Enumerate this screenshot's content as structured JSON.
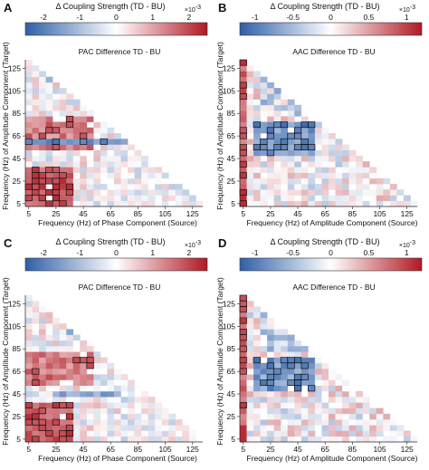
{
  "colormap": {
    "neg": "#2f5fa8",
    "zero": "#ffffff",
    "pos": "#b01924"
  },
  "chart_data": [
    {
      "letter": "A",
      "type": "heatmap",
      "mode": "pac",
      "title": "PAC Difference TD - BU",
      "colorbar_label": "Δ Coupling Strength (TD - BU)",
      "colorbar_exp": "×10",
      "colorbar_exp_power": "-3",
      "colorbar_ticks": [
        "-2",
        "-1",
        "0",
        "1",
        "2"
      ],
      "colorbar_range": [
        -2.5,
        2.5
      ],
      "xlabel": "Frequency (Hz) of Phase Component (Source)",
      "ylabel": "Frequency (Hz) of Amplitude Component (Target)",
      "xticks": [
        "5",
        "25",
        "45",
        "65",
        "85",
        "105",
        "125"
      ],
      "yticks": [
        "5",
        "25",
        "45",
        "65",
        "85",
        "105",
        "125"
      ],
      "freq_range": [
        5,
        135
      ],
      "bin_width": 5,
      "seed": 11
    },
    {
      "letter": "B",
      "type": "heatmap",
      "mode": "aac",
      "title": "AAC Difference TD - BU",
      "colorbar_label": "Δ Coupling Strength (TD - BU)",
      "colorbar_exp": "×10",
      "colorbar_exp_power": "-3",
      "colorbar_ticks": [
        "-1",
        "-0.5",
        "0",
        "0.5",
        "1"
      ],
      "colorbar_range": [
        -1.2,
        1.2
      ],
      "xlabel": "Frequency (Hz) of Amplitude Component (Source)",
      "ylabel": "Frequency (Hz) of Amplitude Component (Target)",
      "xticks": [
        "5",
        "25",
        "45",
        "65",
        "85",
        "105",
        "125"
      ],
      "yticks": [
        "5",
        "25",
        "45",
        "65",
        "85",
        "105",
        "125"
      ],
      "freq_range": [
        5,
        135
      ],
      "bin_width": 5,
      "seed": 23
    },
    {
      "letter": "C",
      "type": "heatmap",
      "mode": "pac",
      "title": "PAC Difference TD - BU",
      "colorbar_label": "Δ Coupling Strength (TD - BU)",
      "colorbar_exp": "×10",
      "colorbar_exp_power": "-3",
      "colorbar_ticks": [
        "-2",
        "-1",
        "0",
        "1",
        "2"
      ],
      "colorbar_range": [
        -2.5,
        2.5
      ],
      "xlabel": "Frequency (Hz) of Phase Component (Source)",
      "ylabel": "Frequency (Hz) of Amplitude Component (Target)",
      "xticks": [
        "5",
        "25",
        "45",
        "65",
        "85",
        "105",
        "125"
      ],
      "yticks": [
        "5",
        "25",
        "45",
        "65",
        "85",
        "105",
        "125"
      ],
      "freq_range": [
        5,
        135
      ],
      "bin_width": 5,
      "seed": 37
    },
    {
      "letter": "D",
      "type": "heatmap",
      "mode": "aac",
      "title": "AAC Difference TD - BU",
      "colorbar_label": "Δ Coupling Strength (TD - BU)",
      "colorbar_exp": "×10",
      "colorbar_exp_power": "-3",
      "colorbar_ticks": [
        "-1",
        "-0.5",
        "0",
        "0.5",
        "1"
      ],
      "colorbar_range": [
        -1.2,
        1.2
      ],
      "xlabel": "Frequency (Hz) of Amplitude Component (Source)",
      "ylabel": "Frequency (Hz) of Amplitude Component (Target)",
      "xticks": [
        "5",
        "25",
        "45",
        "65",
        "85",
        "105",
        "125"
      ],
      "yticks": [
        "5",
        "25",
        "45",
        "65",
        "85",
        "105",
        "125"
      ],
      "freq_range": [
        5,
        135
      ],
      "bin_width": 5,
      "seed": 53
    }
  ]
}
